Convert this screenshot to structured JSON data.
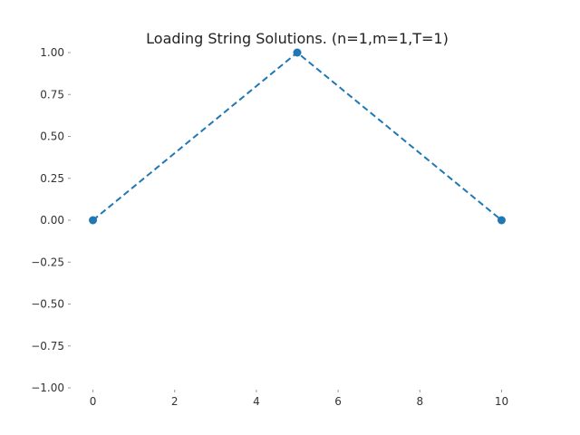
{
  "chart_data": {
    "type": "line",
    "title": "Loading String Solutions. (n=1,m=1,T=1)",
    "xlabel": "",
    "ylabel": "",
    "xlim": [
      -0.5,
      10.5
    ],
    "ylim": [
      -1.0,
      1.0
    ],
    "x_ticks": [
      0,
      2,
      4,
      6,
      8,
      10
    ],
    "x_tick_labels": [
      "0",
      "2",
      "4",
      "6",
      "8",
      "10"
    ],
    "y_ticks": [
      1.0,
      0.75,
      0.5,
      0.25,
      0.0,
      -0.25,
      -0.5,
      -0.75,
      -1.0
    ],
    "y_tick_labels": [
      "1.00",
      "0.75",
      "0.50",
      "0.25",
      "0.00",
      "−0.25",
      "−0.50",
      "−0.75",
      "−1.00"
    ],
    "grid": false,
    "legend": "none",
    "series": [
      {
        "x": [
          0,
          5,
          10
        ],
        "y": [
          0,
          1,
          0
        ],
        "color": "#1f77b4",
        "line_style": "dashed",
        "marker": "circle"
      }
    ]
  }
}
